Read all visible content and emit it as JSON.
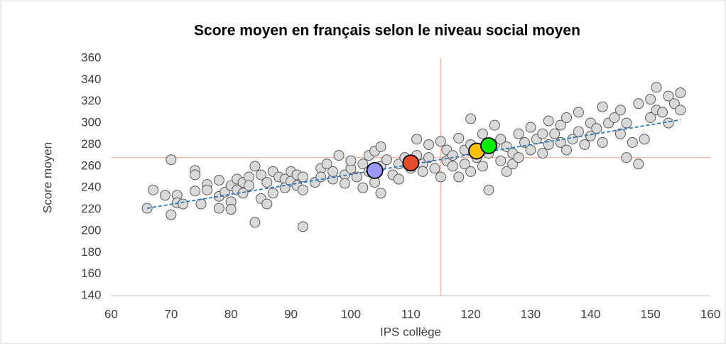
{
  "chart_data": {
    "type": "scatter",
    "title": "Score moyen en français selon le niveau social moyen",
    "xlabel": "IPS collège",
    "ylabel": "Score moyen",
    "xlim": [
      60,
      160
    ],
    "ylim": [
      140,
      360
    ],
    "xticks": [
      60,
      70,
      80,
      90,
      100,
      110,
      120,
      130,
      140,
      150,
      160
    ],
    "yticks": [
      140,
      160,
      180,
      200,
      220,
      240,
      260,
      280,
      300,
      320,
      340,
      360
    ],
    "vlines": [
      115
    ],
    "hlines": [
      268
    ],
    "reference_color": "#f4b9a8",
    "series": [
      {
        "type": "scatter",
        "color": "#d9d9d9",
        "x": [
          66,
          67,
          69,
          70,
          70,
          71,
          71,
          72,
          74,
          74,
          74,
          75,
          76,
          76,
          78,
          78,
          78,
          79,
          80,
          80,
          80,
          81,
          81,
          82,
          82,
          83,
          83,
          84,
          84,
          85,
          85,
          86,
          86,
          87,
          87,
          88,
          89,
          89,
          90,
          90,
          91,
          91,
          92,
          92,
          92,
          94,
          95,
          95,
          96,
          97,
          97,
          98,
          99,
          99,
          100,
          100,
          101,
          102,
          102,
          103,
          103,
          104,
          104,
          105,
          105,
          105,
          106,
          107,
          108,
          108,
          109,
          110,
          111,
          111,
          112,
          112,
          113,
          113,
          114,
          115,
          115,
          116,
          116,
          117,
          117,
          118,
          118,
          119,
          119,
          120,
          120,
          120,
          121,
          122,
          122,
          123,
          123,
          124,
          124,
          125,
          125,
          126,
          126,
          127,
          127,
          128,
          128,
          129,
          130,
          130,
          131,
          132,
          132,
          133,
          133,
          134,
          135,
          135,
          136,
          136,
          137,
          138,
          138,
          139,
          140,
          140,
          141,
          142,
          142,
          143,
          144,
          145,
          145,
          146,
          146,
          147,
          148,
          148,
          149,
          150,
          150,
          151,
          151,
          152,
          153,
          153,
          154,
          155,
          155
        ],
        "values": [
          221,
          238,
          233,
          266,
          215,
          233,
          226,
          225,
          256,
          252,
          237,
          225,
          243,
          238,
          247,
          232,
          221,
          236,
          242,
          227,
          220,
          248,
          238,
          245,
          235,
          250,
          242,
          260,
          208,
          252,
          230,
          245,
          225,
          255,
          235,
          250,
          248,
          240,
          255,
          246,
          242,
          252,
          204,
          250,
          238,
          245,
          258,
          250,
          262,
          248,
          255,
          270,
          252,
          244,
          258,
          265,
          250,
          262,
          240,
          255,
          270,
          274,
          245,
          278,
          235,
          260,
          266,
          252,
          262,
          248,
          268,
          258,
          285,
          270,
          262,
          255,
          280,
          268,
          258,
          283,
          250,
          275,
          265,
          270,
          260,
          286,
          250,
          275,
          262,
          304,
          280,
          255,
          268,
          290,
          260,
          238,
          272,
          298,
          280,
          285,
          265,
          278,
          255,
          272,
          262,
          290,
          268,
          282,
          296,
          275,
          285,
          290,
          272,
          302,
          280,
          290,
          298,
          282,
          305,
          275,
          285,
          310,
          292,
          280,
          300,
          288,
          295,
          315,
          282,
          300,
          305,
          312,
          290,
          268,
          300,
          282,
          262,
          318,
          285,
          322,
          305,
          333,
          312,
          310,
          325,
          300,
          318,
          328,
          312
        ]
      },
      {
        "type": "line",
        "color": "#2e75b6",
        "x": [
          66,
          155
        ],
        "values": [
          221,
          303
        ]
      },
      {
        "type": "scatter",
        "color": "#9999ff",
        "x": [
          104
        ],
        "values": [
          256
        ]
      },
      {
        "type": "scatter",
        "color": "#e84c2c",
        "x": [
          110
        ],
        "values": [
          263
        ]
      },
      {
        "type": "scatter",
        "color": "#ffc000",
        "x": [
          121
        ],
        "values": [
          274
        ]
      },
      {
        "type": "scatter",
        "color": "#00ee00",
        "x": [
          123
        ],
        "values": [
          279
        ]
      }
    ]
  }
}
